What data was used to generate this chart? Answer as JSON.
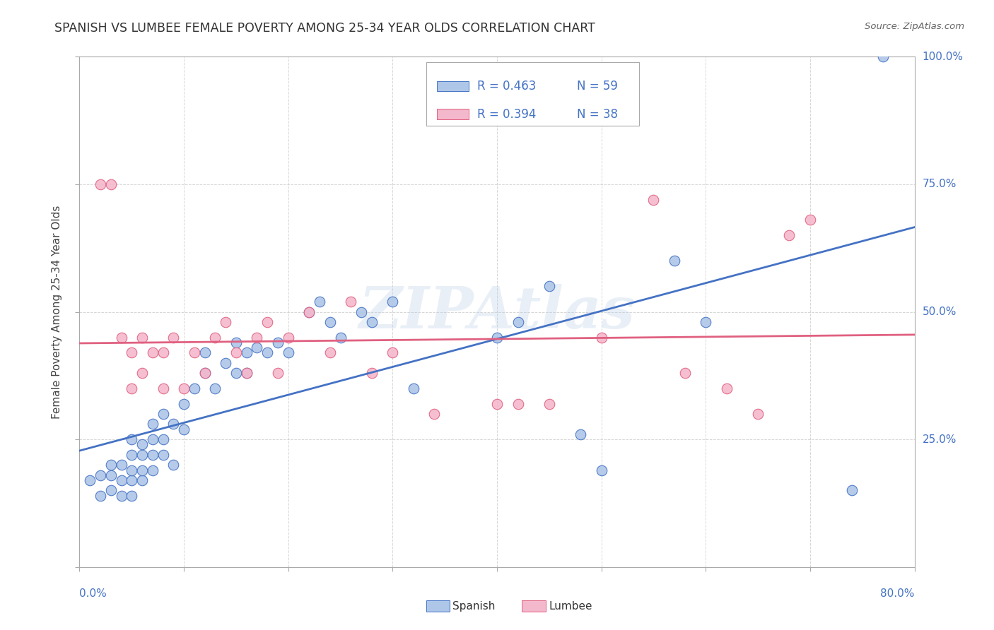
{
  "title": "SPANISH VS LUMBEE FEMALE POVERTY AMONG 25-34 YEAR OLDS CORRELATION CHART",
  "source": "Source: ZipAtlas.com",
  "ylabel": "Female Poverty Among 25-34 Year Olds",
  "xlim": [
    0,
    0.8
  ],
  "ylim": [
    0,
    1.0
  ],
  "spanish_R": 0.463,
  "spanish_N": 59,
  "lumbee_R": 0.394,
  "lumbee_N": 38,
  "spanish_color": "#aec6e8",
  "lumbee_color": "#f4b8cc",
  "spanish_line_color": "#4472c4",
  "lumbee_line_color": "#e06080",
  "watermark": "ZIPAtlas",
  "spanish_x": [
    0.01,
    0.02,
    0.02,
    0.03,
    0.03,
    0.03,
    0.04,
    0.04,
    0.04,
    0.05,
    0.05,
    0.05,
    0.05,
    0.05,
    0.06,
    0.06,
    0.06,
    0.06,
    0.07,
    0.07,
    0.07,
    0.07,
    0.08,
    0.08,
    0.08,
    0.09,
    0.09,
    0.1,
    0.1,
    0.11,
    0.12,
    0.12,
    0.13,
    0.14,
    0.15,
    0.15,
    0.16,
    0.16,
    0.17,
    0.18,
    0.19,
    0.2,
    0.22,
    0.23,
    0.24,
    0.25,
    0.27,
    0.28,
    0.3,
    0.32,
    0.4,
    0.42,
    0.45,
    0.48,
    0.5,
    0.57,
    0.6,
    0.74,
    0.77
  ],
  "spanish_y": [
    0.17,
    0.14,
    0.18,
    0.15,
    0.18,
    0.2,
    0.14,
    0.17,
    0.2,
    0.14,
    0.17,
    0.19,
    0.22,
    0.25,
    0.17,
    0.19,
    0.22,
    0.24,
    0.19,
    0.22,
    0.25,
    0.28,
    0.22,
    0.25,
    0.3,
    0.2,
    0.28,
    0.27,
    0.32,
    0.35,
    0.38,
    0.42,
    0.35,
    0.4,
    0.38,
    0.44,
    0.38,
    0.42,
    0.43,
    0.42,
    0.44,
    0.42,
    0.5,
    0.52,
    0.48,
    0.45,
    0.5,
    0.48,
    0.52,
    0.35,
    0.45,
    0.48,
    0.55,
    0.26,
    0.19,
    0.6,
    0.48,
    0.15,
    1.0
  ],
  "lumbee_x": [
    0.02,
    0.03,
    0.04,
    0.05,
    0.05,
    0.06,
    0.06,
    0.07,
    0.08,
    0.08,
    0.09,
    0.1,
    0.11,
    0.12,
    0.13,
    0.14,
    0.15,
    0.16,
    0.17,
    0.18,
    0.19,
    0.2,
    0.22,
    0.24,
    0.26,
    0.28,
    0.3,
    0.34,
    0.4,
    0.42,
    0.45,
    0.5,
    0.55,
    0.58,
    0.62,
    0.65,
    0.68,
    0.7
  ],
  "lumbee_y": [
    0.75,
    0.75,
    0.45,
    0.35,
    0.42,
    0.38,
    0.45,
    0.42,
    0.35,
    0.42,
    0.45,
    0.35,
    0.42,
    0.38,
    0.45,
    0.48,
    0.42,
    0.38,
    0.45,
    0.48,
    0.38,
    0.45,
    0.5,
    0.42,
    0.52,
    0.38,
    0.42,
    0.3,
    0.32,
    0.32,
    0.32,
    0.45,
    0.72,
    0.38,
    0.35,
    0.3,
    0.65,
    0.68
  ]
}
